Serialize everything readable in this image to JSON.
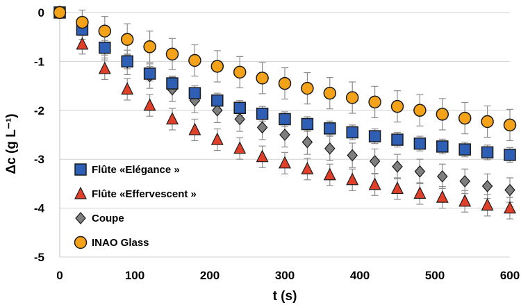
{
  "chart_data": {
    "type": "scatter",
    "title": "",
    "xlabel": "t (s)",
    "ylabel": "Δc (g L⁻¹)",
    "xlim": [
      0,
      600
    ],
    "ylim": [
      -5,
      0
    ],
    "xticks": [
      0,
      100,
      200,
      300,
      400,
      500,
      600
    ],
    "yticks": [
      0,
      -1,
      -2,
      -3,
      -4,
      -5
    ],
    "grid": "horizontal",
    "legend_position": "lower-left",
    "x": [
      0,
      30,
      60,
      90,
      120,
      150,
      180,
      210,
      240,
      270,
      300,
      330,
      360,
      390,
      420,
      450,
      480,
      510,
      540,
      570,
      600
    ],
    "series": [
      {
        "name": "Flûte «Elégance »",
        "marker": "square",
        "color": "#2f5fb5",
        "values": [
          0,
          -0.35,
          -0.72,
          -1.0,
          -1.25,
          -1.45,
          -1.65,
          -1.8,
          -1.95,
          -2.07,
          -2.18,
          -2.28,
          -2.37,
          -2.45,
          -2.53,
          -2.6,
          -2.68,
          -2.74,
          -2.8,
          -2.86,
          -2.91
        ],
        "errors": [
          0,
          0.12,
          0.15,
          0.15,
          0.15,
          0.15,
          0.15,
          0.15,
          0.15,
          0.15,
          0.15,
          0.15,
          0.15,
          0.15,
          0.15,
          0.15,
          0.15,
          0.15,
          0.15,
          0.15,
          0.15
        ]
      },
      {
        "name": "Flûte «Effervescent »",
        "marker": "triangle",
        "color": "#e0402a",
        "values": [
          0,
          -0.65,
          -1.15,
          -1.57,
          -1.9,
          -2.18,
          -2.4,
          -2.6,
          -2.78,
          -2.95,
          -3.08,
          -3.2,
          -3.32,
          -3.42,
          -3.52,
          -3.6,
          -3.7,
          -3.78,
          -3.86,
          -3.94,
          -4.0
        ],
        "errors": [
          0,
          0.2,
          0.22,
          0.22,
          0.22,
          0.22,
          0.22,
          0.22,
          0.22,
          0.22,
          0.22,
          0.22,
          0.22,
          0.22,
          0.22,
          0.22,
          0.22,
          0.22,
          0.22,
          0.22,
          0.22
        ]
      },
      {
        "name": "Coupe",
        "marker": "diamond",
        "color": "#7f7f7f",
        "values": [
          0,
          -0.35,
          -0.72,
          -1.02,
          -1.3,
          -1.57,
          -1.8,
          -2.0,
          -2.18,
          -2.35,
          -2.5,
          -2.65,
          -2.78,
          -2.92,
          -3.04,
          -3.15,
          -3.25,
          -3.35,
          -3.45,
          -3.55,
          -3.63
        ],
        "errors": [
          0,
          0.2,
          0.25,
          0.25,
          0.25,
          0.25,
          0.25,
          0.25,
          0.25,
          0.25,
          0.25,
          0.25,
          0.25,
          0.25,
          0.25,
          0.25,
          0.25,
          0.25,
          0.25,
          0.25,
          0.25
        ]
      },
      {
        "name": "INAO Glass",
        "marker": "circle",
        "color": "#f5a21b",
        "values": [
          0,
          -0.2,
          -0.38,
          -0.55,
          -0.7,
          -0.85,
          -0.98,
          -1.1,
          -1.22,
          -1.34,
          -1.45,
          -1.55,
          -1.65,
          -1.74,
          -1.83,
          -1.92,
          -2.0,
          -2.08,
          -2.16,
          -2.23,
          -2.3
        ],
        "errors": [
          0,
          0.25,
          0.3,
          0.32,
          0.32,
          0.32,
          0.32,
          0.32,
          0.32,
          0.32,
          0.32,
          0.32,
          0.32,
          0.32,
          0.32,
          0.32,
          0.32,
          0.32,
          0.32,
          0.32,
          0.32
        ]
      }
    ]
  }
}
